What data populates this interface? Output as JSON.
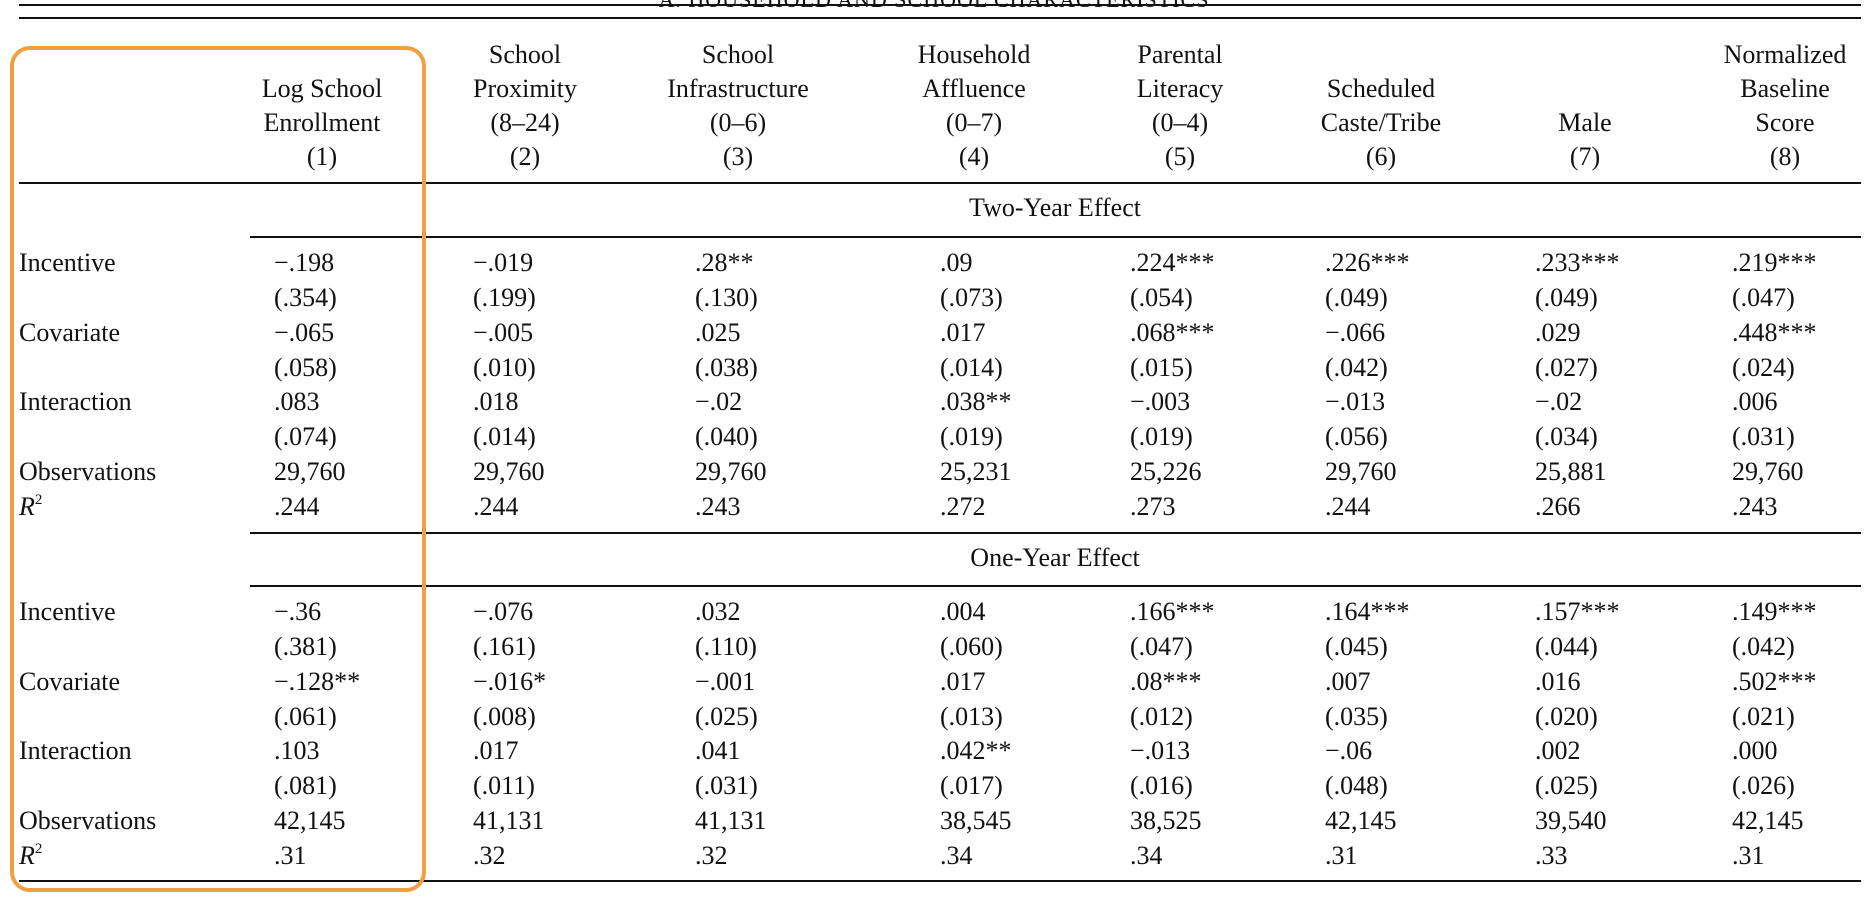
{
  "table": {
    "panel_heading": "A. HOUSEHOLD AND SCHOOL CHARACTERISTICS",
    "columns": [
      {
        "lines": [
          "",
          "Log School",
          "Enrollment",
          "(1)"
        ]
      },
      {
        "lines": [
          "School",
          "Proximity",
          "(8–24)",
          "(2)"
        ]
      },
      {
        "lines": [
          "School",
          "Infrastructure",
          "(0–6)",
          "(3)"
        ]
      },
      {
        "lines": [
          "Household",
          "Affluence",
          "(0–7)",
          "(4)"
        ]
      },
      {
        "lines": [
          "Parental",
          "Literacy",
          "(0–4)",
          "(5)"
        ]
      },
      {
        "lines": [
          "",
          "Scheduled",
          "Caste/Tribe",
          "(6)"
        ]
      },
      {
        "lines": [
          "",
          "",
          "Male",
          "(7)"
        ]
      },
      {
        "lines": [
          "Normalized",
          "Baseline",
          "Score",
          "(8)"
        ]
      }
    ],
    "panels": [
      {
        "title": "Two-Year Effect",
        "rows": [
          {
            "label": "Incentive",
            "values": [
              "−.198",
              "−.019",
              ".28**",
              ".09",
              ".224***",
              ".226***",
              ".233***",
              ".219***"
            ]
          },
          {
            "label": "",
            "values": [
              "(.354)",
              "(.199)",
              "(.130)",
              "(.073)",
              "(.054)",
              "(.049)",
              "(.049)",
              "(.047)"
            ]
          },
          {
            "label": "Covariate",
            "values": [
              "−.065",
              "−.005",
              ".025",
              ".017",
              ".068***",
              "−.066",
              ".029",
              ".448***"
            ]
          },
          {
            "label": "",
            "values": [
              "(.058)",
              "(.010)",
              "(.038)",
              "(.014)",
              "(.015)",
              "(.042)",
              "(.027)",
              "(.024)"
            ]
          },
          {
            "label": "Interaction",
            "values": [
              ".083",
              ".018",
              "−.02",
              ".038**",
              "−.003",
              "−.013",
              "−.02",
              ".006"
            ]
          },
          {
            "label": "",
            "values": [
              "(.074)",
              "(.014)",
              "(.040)",
              "(.019)",
              "(.019)",
              "(.056)",
              "(.034)",
              "(.031)"
            ]
          },
          {
            "label": "Observations",
            "values": [
              "29,760",
              "29,760",
              "29,760",
              "25,231",
              "25,226",
              "29,760",
              "25,881",
              "29,760"
            ]
          },
          {
            "label": "R",
            "sup": "2",
            "values": [
              ".244",
              ".244",
              ".243",
              ".272",
              ".273",
              ".244",
              ".266",
              ".243"
            ]
          }
        ]
      },
      {
        "title": "One-Year Effect",
        "rows": [
          {
            "label": "Incentive",
            "values": [
              "−.36",
              "−.076",
              ".032",
              ".004",
              ".166***",
              ".164***",
              ".157***",
              ".149***"
            ]
          },
          {
            "label": "",
            "values": [
              "(.381)",
              "(.161)",
              "(.110)",
              "(.060)",
              "(.047)",
              "(.045)",
              "(.044)",
              "(.042)"
            ]
          },
          {
            "label": "Covariate",
            "values": [
              "−.128**",
              "−.016*",
              "−.001",
              ".017",
              ".08***",
              ".007",
              ".016",
              ".502***"
            ]
          },
          {
            "label": "",
            "values": [
              "(.061)",
              "(.008)",
              "(.025)",
              "(.013)",
              "(.012)",
              "(.035)",
              "(.020)",
              "(.021)"
            ]
          },
          {
            "label": "Interaction",
            "values": [
              ".103",
              ".017",
              ".041",
              ".042**",
              "−.013",
              "−.06",
              ".002",
              ".000"
            ]
          },
          {
            "label": "",
            "values": [
              "(.081)",
              "(.011)",
              "(.031)",
              "(.017)",
              "(.016)",
              "(.048)",
              "(.025)",
              "(.026)"
            ]
          },
          {
            "label": "Observations",
            "values": [
              "42,145",
              "41,131",
              "41,131",
              "38,545",
              "38,525",
              "42,145",
              "39,540",
              "42,145"
            ]
          },
          {
            "label": "R",
            "sup": "2",
            "values": [
              ".31",
              ".32",
              ".32",
              ".34",
              ".34",
              ".31",
              ".33",
              ".31"
            ]
          }
        ]
      }
    ]
  },
  "colors": {
    "rule": "#111111",
    "highlight_border": "#f0a040",
    "text": "#111111"
  }
}
